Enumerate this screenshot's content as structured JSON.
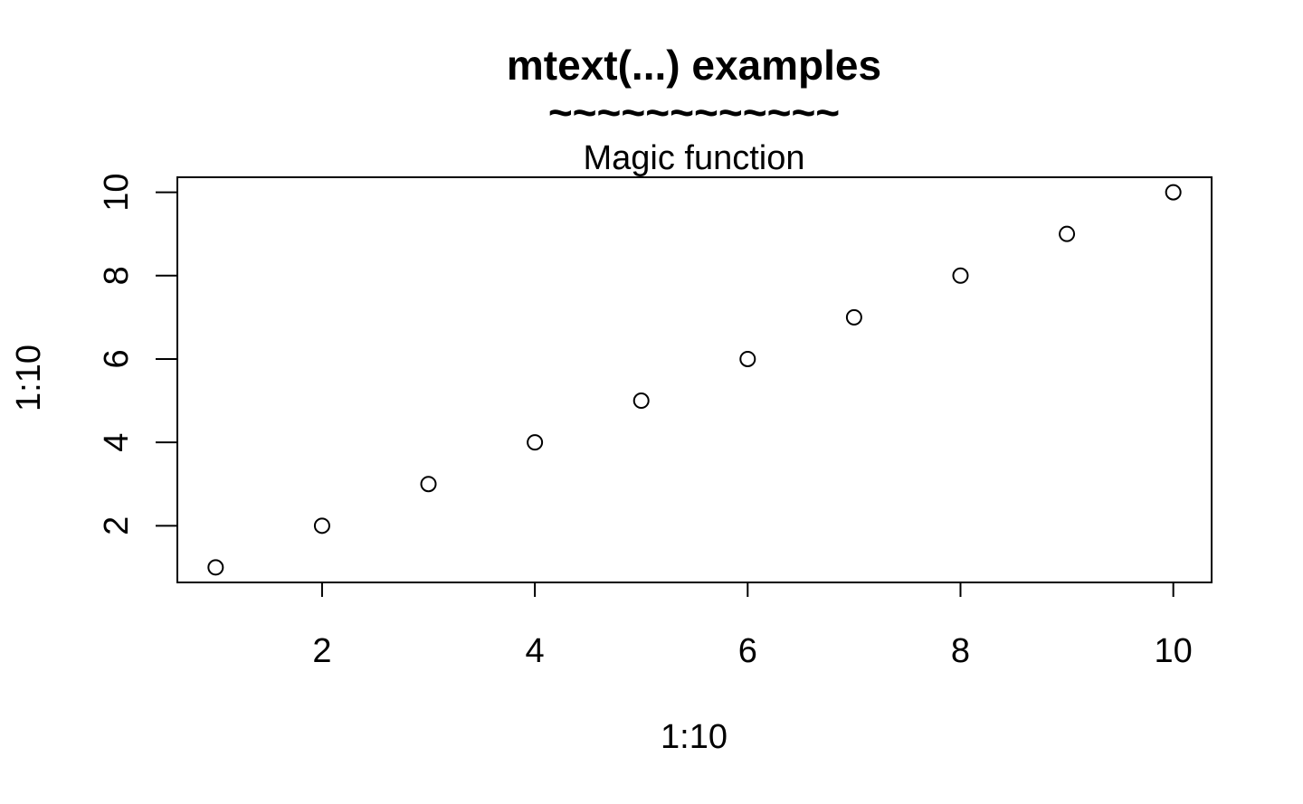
{
  "chart_data": {
    "type": "scatter",
    "title": "mtext(...) examples",
    "subtitle": "~~~~~~~~~~~~",
    "annotation": "Magic function",
    "xlabel": "1:10",
    "ylabel": "1:10",
    "x": [
      1,
      2,
      3,
      4,
      5,
      6,
      7,
      8,
      9,
      10
    ],
    "y": [
      1,
      2,
      3,
      4,
      5,
      6,
      7,
      8,
      9,
      10
    ],
    "xlim": [
      0.64,
      10.36
    ],
    "ylim": [
      0.64,
      10.36
    ],
    "xticks": [
      2,
      4,
      6,
      8,
      10
    ],
    "xtick_labels": [
      "2",
      "4",
      "6",
      "8",
      "10"
    ],
    "yticks": [
      2,
      4,
      6,
      8,
      10
    ],
    "ytick_labels": [
      "2",
      "4",
      "6",
      "8",
      "10"
    ],
    "marker": "open-circle",
    "grid": false,
    "box": true,
    "color": "#000000"
  }
}
